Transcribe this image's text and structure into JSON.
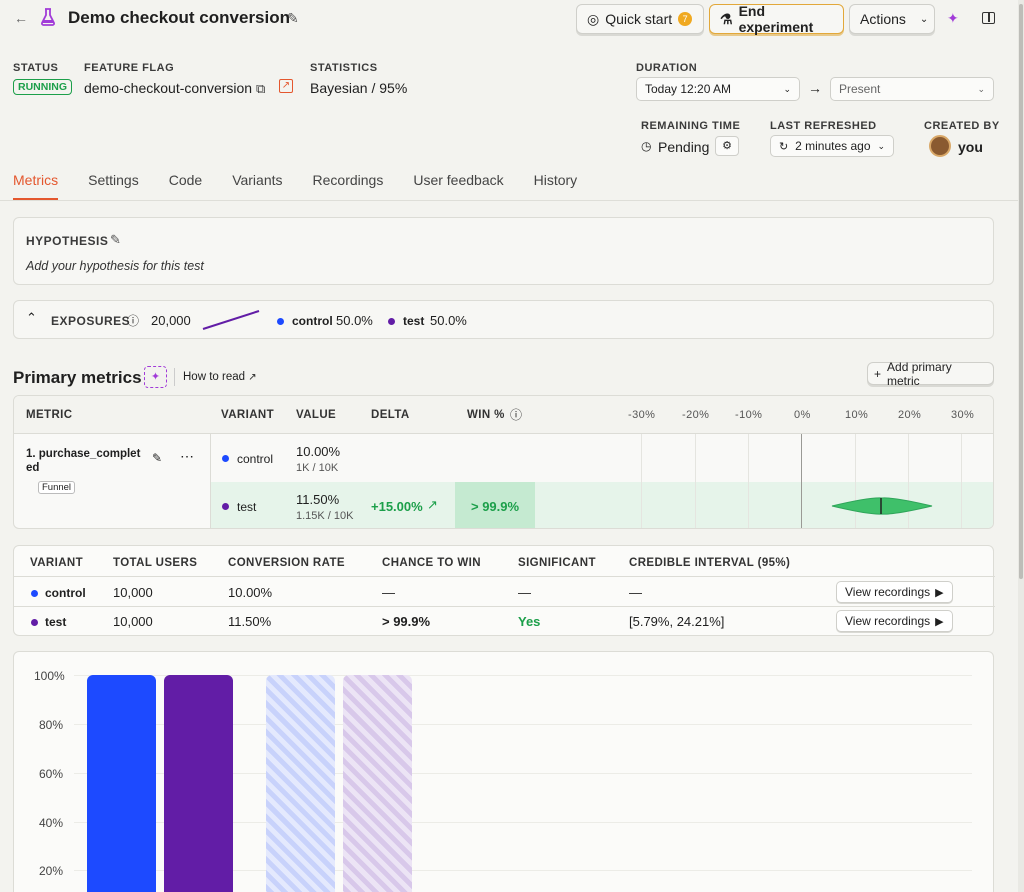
{
  "header": {
    "title": "Demo checkout conversion",
    "quick_start": "Quick start",
    "quick_start_count": "7",
    "end_experiment": "End experiment",
    "actions": "Actions"
  },
  "meta": {
    "status_label": "STATUS",
    "status_value": "RUNNING",
    "flag_label": "FEATURE FLAG",
    "flag_value": "demo-checkout-conversion",
    "stats_label": "STATISTICS",
    "stats_value": "Bayesian / 95%",
    "duration_label": "DURATION",
    "duration_start": "Today 12:20 AM",
    "duration_end": "Present",
    "remaining_label": "REMAINING TIME",
    "remaining_value": "Pending",
    "refreshed_label": "LAST REFRESHED",
    "refreshed_value": "2 minutes ago",
    "created_label": "CREATED BY",
    "created_value": "you"
  },
  "tabs": [
    "Metrics",
    "Settings",
    "Code",
    "Variants",
    "Recordings",
    "User feedback",
    "History"
  ],
  "hypothesis": {
    "label": "HYPOTHESIS",
    "placeholder": "Add your hypothesis for this test"
  },
  "exposures": {
    "label": "EXPOSURES",
    "total": "20,000",
    "control_label": "control",
    "control_pct": "50.0%",
    "test_label": "test",
    "test_pct": "50.0%"
  },
  "primary": {
    "title": "Primary metrics",
    "how_to_read": "How to read",
    "add_button": "Add primary metric",
    "headers": {
      "metric": "METRIC",
      "variant": "VARIANT",
      "value": "VALUE",
      "delta": "DELTA",
      "win": "WIN %"
    },
    "axis_ticks": [
      "-30%",
      "-20%",
      "-10%",
      "0%",
      "10%",
      "20%",
      "30%"
    ],
    "metric_name": "1. purchase_complet ed",
    "metric_tag": "Funnel",
    "rows": [
      {
        "variant": "control",
        "value": "10.00%",
        "sub": "1K / 10K",
        "delta": "",
        "win": ""
      },
      {
        "variant": "test",
        "value": "11.50%",
        "sub": "1.15K / 10K",
        "delta": "+15.00%",
        "win": "> 99.9%"
      }
    ]
  },
  "results": {
    "headers": [
      "VARIANT",
      "TOTAL USERS",
      "CONVERSION RATE",
      "CHANCE TO WIN",
      "SIGNIFICANT",
      "CREDIBLE INTERVAL (95%)"
    ],
    "rows": [
      {
        "variant": "control",
        "users": "10,000",
        "rate": "10.00%",
        "chance": "—",
        "significant": "—",
        "interval": "—",
        "button": "View recordings"
      },
      {
        "variant": "test",
        "users": "10,000",
        "rate": "11.50%",
        "chance": "> 99.9%",
        "significant": "Yes",
        "interval": "[5.79%, 24.21%]",
        "button": "View recordings"
      }
    ]
  },
  "bar_chart": {
    "y_ticks": [
      "100%",
      "80%",
      "60%",
      "40%",
      "20%"
    ]
  },
  "colors": {
    "control": "#1d4aff",
    "test": "#621da6",
    "accent": "#e4572e",
    "success": "#1c9f4a"
  }
}
